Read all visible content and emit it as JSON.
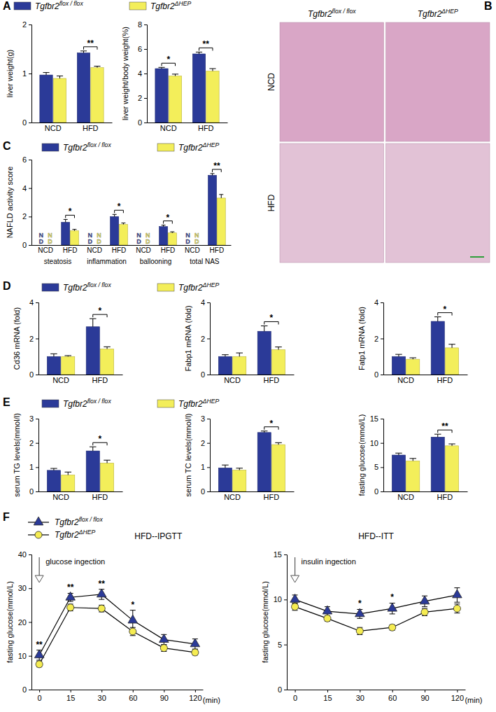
{
  "chart_data": [
    {
      "type": "bar",
      "panel": "A",
      "legend": "top",
      "ylabel": "liver weight(g)",
      "categories": [
        "NCD",
        "HFD"
      ],
      "ylim": [
        0,
        2
      ],
      "yticks": [
        0,
        1,
        2
      ],
      "series": [
        {
          "name": "Tgfbr2flox / flox",
          "color": "#2b3a98",
          "values": [
            0.97,
            1.42
          ],
          "errors": [
            0.05,
            0.04
          ]
        },
        {
          "name": "Tgfbr2ΔHEP",
          "color": "#f3ee5a",
          "values": [
            0.9,
            1.12
          ],
          "errors": [
            0.05,
            0.03
          ]
        }
      ],
      "significance": [
        null,
        "**"
      ]
    },
    {
      "type": "bar",
      "ylabel": "liver weight/body weight(%)",
      "categories": [
        "NCD",
        "HFD"
      ],
      "ylim": [
        0,
        8
      ],
      "yticks": [
        0,
        2,
        4,
        6,
        8
      ],
      "series": [
        {
          "color": "#2b3a98",
          "values": [
            4.4,
            5.6
          ],
          "errors": [
            0.1,
            0.15
          ]
        },
        {
          "color": "#f3ee5a",
          "values": [
            3.8,
            4.2
          ],
          "errors": [
            0.15,
            0.2
          ]
        }
      ],
      "significance": [
        "*",
        "**"
      ]
    },
    {
      "type": "image",
      "panel": "B",
      "columns": [
        "Tgfbr2flox / flox",
        "Tgfbr2ΔHEP"
      ],
      "rows": [
        "NCD",
        "HFD"
      ]
    },
    {
      "type": "bar",
      "panel": "C",
      "legend": "top",
      "ylabel": "NAFLD activity score",
      "categories": [
        "NCD",
        "HFD",
        "NCD",
        "HFD",
        "NCD",
        "HFD",
        "NCD",
        "HFD"
      ],
      "groups": [
        "steatosis",
        "inflammation",
        "ballooning",
        "total NAS"
      ],
      "ylim": [
        0,
        6
      ],
      "yticks": [
        0,
        2,
        4,
        6
      ],
      "series": [
        {
          "name": "Tgfbr2flox / flox",
          "color": "#2b3a98",
          "values": [
            null,
            1.6,
            null,
            2.0,
            null,
            1.3,
            null,
            4.9
          ],
          "value_labels": [
            "ND",
            null,
            "ND",
            null,
            "ND",
            null,
            "ND",
            null
          ],
          "errors": [
            null,
            0.2,
            null,
            0.15,
            null,
            0.1,
            null,
            0.12
          ]
        },
        {
          "name": "Tgfbr2ΔHEP",
          "color": "#f3ee5a",
          "values": [
            null,
            1.0,
            null,
            1.45,
            null,
            0.85,
            null,
            3.3
          ],
          "value_labels": [
            "ND",
            null,
            "ND",
            null,
            "ND",
            null,
            "ND",
            null
          ],
          "errors": [
            null,
            0.1,
            null,
            0.1,
            null,
            0.08,
            null,
            0.25
          ]
        }
      ],
      "significance": [
        null,
        "*",
        null,
        "*",
        null,
        "*",
        null,
        "**"
      ]
    },
    {
      "type": "bar",
      "panel": "D",
      "legend": "top",
      "ylabel": "Cd36 mRNA (fold)",
      "categories": [
        "NCD",
        "HFD"
      ],
      "ylim": [
        0,
        4
      ],
      "yticks": [
        0,
        2,
        4
      ],
      "series": [
        {
          "name": "Tgfbr2flox / flox",
          "color": "#2b3a98",
          "values": [
            1.0,
            2.65
          ],
          "errors": [
            0.15,
            0.45
          ]
        },
        {
          "name": "Tgfbr2ΔHEP",
          "color": "#f3ee5a",
          "values": [
            1.0,
            1.42
          ],
          "errors": [
            0.05,
            0.12
          ]
        }
      ],
      "significance": [
        null,
        "*"
      ]
    },
    {
      "type": "bar",
      "ylabel": "Fabp1 mRNA (fold)",
      "categories": [
        "NCD",
        "HFD"
      ],
      "ylim": [
        0,
        4
      ],
      "yticks": [
        0,
        2,
        4
      ],
      "series": [
        {
          "color": "#2b3a98",
          "values": [
            1.0,
            2.4
          ],
          "errors": [
            0.1,
            0.3
          ]
        },
        {
          "color": "#f3ee5a",
          "values": [
            1.0,
            1.38
          ],
          "errors": [
            0.2,
            0.15
          ]
        }
      ],
      "significance": [
        null,
        "*"
      ]
    },
    {
      "type": "bar",
      "ylabel": "Fatp1 mRNA (fold)",
      "categories": [
        "NCD",
        "HFD"
      ],
      "ylim": [
        0,
        4
      ],
      "yticks": [
        0,
        2,
        4
      ],
      "series": [
        {
          "color": "#2b3a98",
          "values": [
            1.0,
            2.95
          ],
          "errors": [
            0.12,
            0.25
          ]
        },
        {
          "color": "#f3ee5a",
          "values": [
            0.85,
            1.48
          ],
          "errors": [
            0.08,
            0.2
          ]
        }
      ],
      "significance": [
        null,
        "*"
      ]
    },
    {
      "type": "bar",
      "panel": "E",
      "legend": "top",
      "ylabel": "serum TG levels(mmol/l)",
      "categories": [
        "NCD",
        "HFD"
      ],
      "ylim": [
        0,
        3
      ],
      "yticks": [
        0,
        1,
        2,
        3
      ],
      "series": [
        {
          "name": "Tgfbr2flox / flox",
          "color": "#2b3a98",
          "values": [
            0.87,
            1.67
          ],
          "errors": [
            0.08,
            0.17
          ]
        },
        {
          "name": "Tgfbr2ΔHEP",
          "color": "#f3ee5a",
          "values": [
            0.68,
            1.17
          ],
          "errors": [
            0.12,
            0.12
          ]
        }
      ],
      "significance": [
        null,
        "*"
      ]
    },
    {
      "type": "bar",
      "ylabel": "serum TC levels(mmol/l)",
      "categories": [
        "NCD",
        "HFD"
      ],
      "ylim": [
        0,
        3
      ],
      "yticks": [
        0,
        1,
        2,
        3
      ],
      "series": [
        {
          "color": "#2b3a98",
          "values": [
            0.97,
            2.43
          ],
          "errors": [
            0.12,
            0.06
          ]
        },
        {
          "color": "#f3ee5a",
          "values": [
            0.88,
            1.93
          ],
          "errors": [
            0.08,
            0.08
          ]
        }
      ],
      "significance": [
        null,
        "*"
      ]
    },
    {
      "type": "bar",
      "ylabel": "fasting glucose(mmol/L)",
      "categories": [
        "NCD",
        "HFD"
      ],
      "ylim": [
        0,
        15
      ],
      "yticks": [
        0,
        5,
        10,
        15
      ],
      "series": [
        {
          "color": "#2b3a98",
          "values": [
            7.5,
            11.2
          ],
          "errors": [
            0.4,
            0.6
          ]
        },
        {
          "color": "#f3ee5a",
          "values": [
            6.3,
            9.4
          ],
          "errors": [
            0.5,
            0.4
          ]
        }
      ],
      "significance": [
        null,
        "**"
      ]
    },
    {
      "type": "line",
      "panel": "F",
      "title": "HFD--IPGTT",
      "legend": "top-left",
      "annotation": "glucose ingection",
      "ylabel": "fasting glucose(mmol/L)",
      "xlabel": "(min)",
      "categories": [
        "0",
        "15",
        "30",
        "60",
        "90",
        "120"
      ],
      "ylim": [
        0,
        40
      ],
      "yticks": [
        0,
        10,
        20,
        30,
        40
      ],
      "series": [
        {
          "name": "Tgfbr2flox / flox",
          "color": "#2b3a98",
          "marker": "triangle",
          "values": [
            10.2,
            27.3,
            28.2,
            20.5,
            14.8,
            13.5
          ],
          "errors": [
            1.5,
            1.2,
            1.5,
            3.0,
            1.5,
            1.5
          ]
        },
        {
          "name": "Tgfbr2ΔHEP",
          "color": "#f5ec52",
          "marker": "circle",
          "values": [
            7.5,
            24.3,
            24.0,
            17.2,
            12.3,
            11.0
          ],
          "errors": [
            0.8,
            1.0,
            1.0,
            1.2,
            1.0,
            0.8
          ]
        }
      ],
      "significance": [
        "**",
        "**",
        "**",
        "*",
        null,
        null
      ]
    },
    {
      "type": "line",
      "title": "HFD--ITT",
      "annotation": "insulin ingection",
      "ylabel": "fasting glucose(mmol/L)",
      "xlabel": "(min)",
      "categories": [
        "0",
        "15",
        "30",
        "60",
        "90",
        "120"
      ],
      "ylim": [
        0,
        15
      ],
      "yticks": [
        0,
        5,
        10,
        15
      ],
      "series": [
        {
          "color": "#2b3a98",
          "marker": "triangle",
          "values": [
            10.0,
            8.7,
            8.4,
            9.0,
            9.8,
            10.5
          ],
          "errors": [
            0.5,
            0.5,
            0.5,
            0.6,
            0.6,
            0.8
          ]
        },
        {
          "color": "#f5ec52",
          "marker": "circle",
          "values": [
            9.2,
            7.9,
            6.5,
            6.9,
            8.6,
            9.0
          ],
          "errors": [
            0.4,
            0.3,
            0.4,
            0.3,
            0.4,
            0.5
          ]
        }
      ],
      "significance": [
        null,
        null,
        "*",
        "*",
        null,
        null
      ]
    }
  ]
}
